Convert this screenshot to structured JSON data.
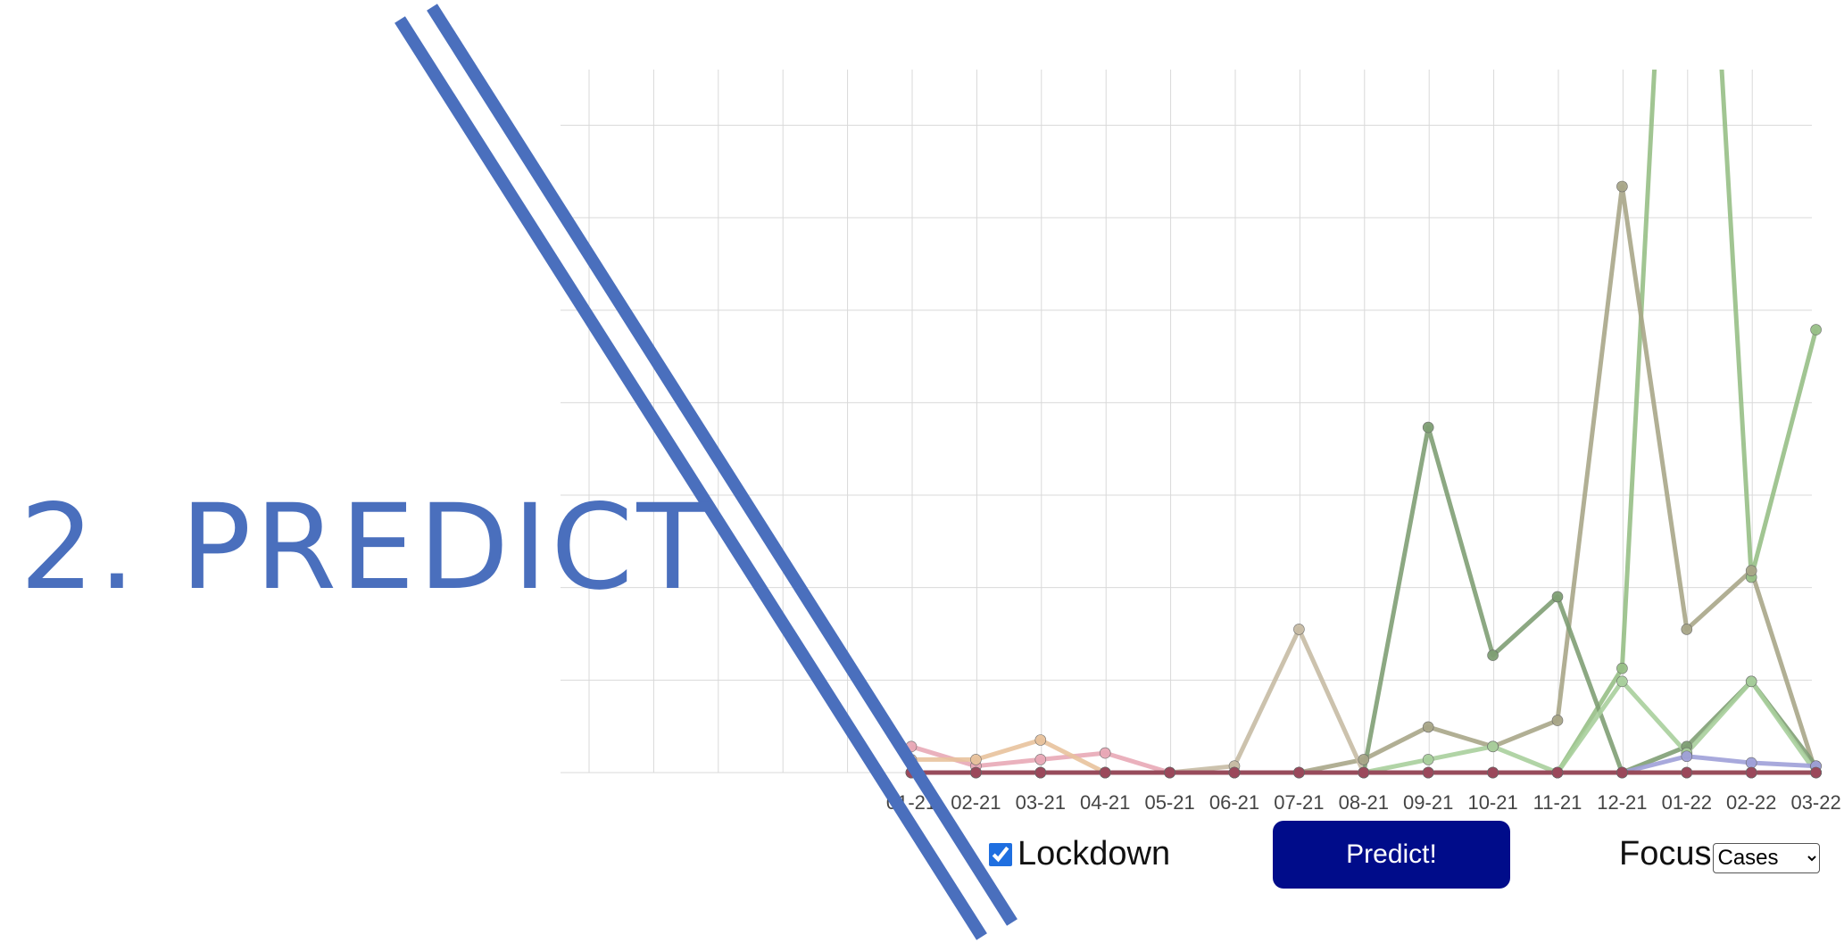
{
  "heading": "2. PREDICT",
  "controls": {
    "lockdown_label": "Lockdown",
    "lockdown_checked": true,
    "predict_label": "Predict!",
    "focus_label": "Focus",
    "focus_options": [
      "Cases"
    ],
    "focus_selected": "Cases"
  },
  "colors": {
    "title": "#4a6fbd",
    "divider": "#4a6fbd",
    "button": "#000c8a",
    "grid": "#d9d9d9"
  },
  "chart_data": {
    "type": "line",
    "title": "",
    "xlabel": "",
    "ylabel": "",
    "grid": true,
    "ylim": [
      0,
      100
    ],
    "categories": [
      "01-21",
      "02-21",
      "03-21",
      "04-21",
      "05-21",
      "06-21",
      "07-21",
      "08-21",
      "09-21",
      "10-21",
      "11-21",
      "12-21",
      "01-22",
      "02-22",
      "03-22"
    ],
    "series": [
      {
        "color": "#97bf86",
        "values": [
          0,
          0,
          0,
          0,
          0,
          0,
          0,
          0,
          0,
          0,
          0,
          16,
          200,
          30,
          68
        ]
      },
      {
        "color": "#a8a688",
        "values": [
          0,
          0,
          0,
          0,
          0,
          0,
          0,
          2,
          7,
          4,
          8,
          90,
          22,
          31,
          0
        ]
      },
      {
        "color": "#7f9f74",
        "values": [
          0,
          0,
          0,
          0,
          0,
          0,
          0,
          0,
          53,
          18,
          27,
          0,
          4,
          14,
          1
        ]
      },
      {
        "color": "#c7bba4",
        "values": [
          0,
          0,
          0,
          0,
          0,
          1,
          22,
          0,
          0,
          0,
          0,
          0,
          0,
          0,
          0
        ]
      },
      {
        "color": "#a8cf9c",
        "values": [
          0,
          0,
          0,
          0,
          0,
          0,
          0,
          0,
          2,
          4,
          0,
          14,
          3,
          14,
          0
        ]
      },
      {
        "color": "#e8a8b6",
        "values": [
          4,
          1,
          2,
          3,
          0,
          0,
          0,
          0,
          0,
          0,
          0,
          0,
          0,
          0,
          0
        ]
      },
      {
        "color": "#e8c29c",
        "values": [
          2,
          2,
          5,
          0,
          0,
          0,
          0,
          0,
          0,
          0,
          0,
          0,
          0,
          0,
          0
        ]
      },
      {
        "color": "#9fa0d8",
        "values": [
          0,
          0,
          0,
          0,
          0,
          0,
          0,
          0,
          0,
          0,
          0,
          0,
          2.5,
          1.5,
          1
        ]
      },
      {
        "color": "#3e7a45",
        "values": [
          0,
          0,
          0,
          0,
          0,
          0,
          0,
          0,
          0,
          0,
          0,
          0,
          0,
          0,
          0
        ]
      },
      {
        "color": "#a0465c",
        "values": [
          0,
          0,
          0,
          0,
          0,
          0,
          0,
          0,
          0,
          0,
          0,
          0,
          0,
          0,
          0
        ]
      }
    ]
  }
}
